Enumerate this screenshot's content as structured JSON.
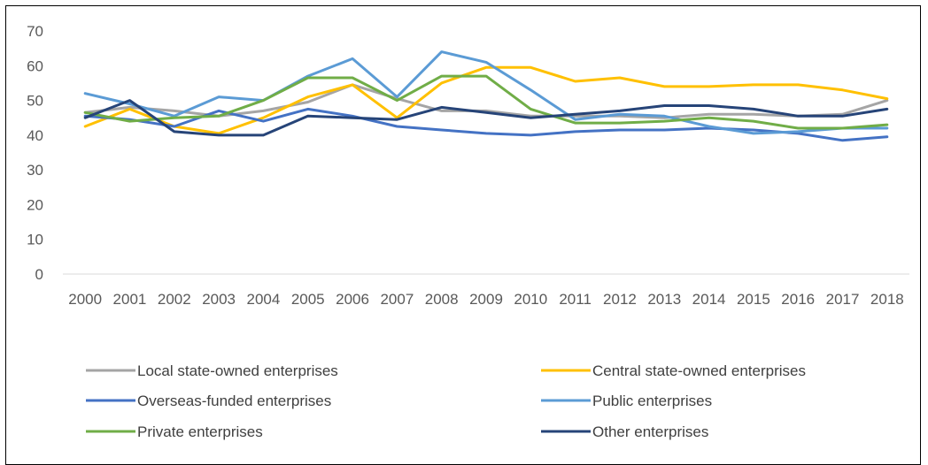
{
  "chart_data": {
    "type": "line",
    "title": "",
    "xlabel": "",
    "ylabel": "",
    "x": [
      "2000",
      "2001",
      "2002",
      "2003",
      "2004",
      "2005",
      "2006",
      "2007",
      "2008",
      "2009",
      "2010",
      "2011",
      "2012",
      "2013",
      "2014",
      "2015",
      "2016",
      "2017",
      "2018"
    ],
    "ylim": [
      0,
      70
    ],
    "yticks": [
      0,
      10,
      20,
      30,
      40,
      50,
      60,
      70
    ],
    "grid": false,
    "legend_position": "bottom",
    "series": [
      {
        "name": "Local state-owned enterprises",
        "color": "#A5A5A5",
        "values": [
          46.5,
          48.0,
          47.0,
          45.5,
          47.0,
          49.5,
          54.5,
          50.5,
          47.0,
          47.0,
          45.5,
          45.5,
          45.5,
          45.0,
          46.0,
          46.0,
          45.5,
          46.0,
          50.0
        ]
      },
      {
        "name": "Central state-owned enterprises",
        "color": "#FFC000",
        "values": [
          42.5,
          47.5,
          42.5,
          40.5,
          45.0,
          51.0,
          54.5,
          45.0,
          55.0,
          59.5,
          59.5,
          55.5,
          56.5,
          54.0,
          54.0,
          54.5,
          54.5,
          53.0,
          50.5
        ]
      },
      {
        "name": "Overseas-funded enterprises",
        "color": "#4472C4",
        "values": [
          45.5,
          44.5,
          42.5,
          47.0,
          44.0,
          47.5,
          45.5,
          42.5,
          41.5,
          40.5,
          40.0,
          41.0,
          41.5,
          41.5,
          42.0,
          41.5,
          40.5,
          38.5,
          39.5
        ]
      },
      {
        "name": "Public enterprises",
        "color": "#5B9BD5",
        "values": [
          52.0,
          49.0,
          45.5,
          51.0,
          50.0,
          57.0,
          62.0,
          51.0,
          64.0,
          61.0,
          53.0,
          44.5,
          46.0,
          45.5,
          42.5,
          40.5,
          41.0,
          42.0,
          42.0
        ]
      },
      {
        "name": "Private enterprises",
        "color": "#70AD47",
        "values": [
          46.5,
          44.0,
          45.0,
          45.5,
          50.0,
          56.5,
          56.5,
          50.0,
          57.0,
          57.0,
          47.5,
          43.5,
          43.5,
          44.0,
          45.0,
          44.0,
          42.0,
          42.0,
          43.0
        ]
      },
      {
        "name": "Other enterprises",
        "color": "#264478",
        "values": [
          45.0,
          50.0,
          41.0,
          40.0,
          40.0,
          45.5,
          45.0,
          44.5,
          48.0,
          46.5,
          45.0,
          46.0,
          47.0,
          48.5,
          48.5,
          47.5,
          45.5,
          45.5,
          47.5
        ]
      }
    ]
  }
}
